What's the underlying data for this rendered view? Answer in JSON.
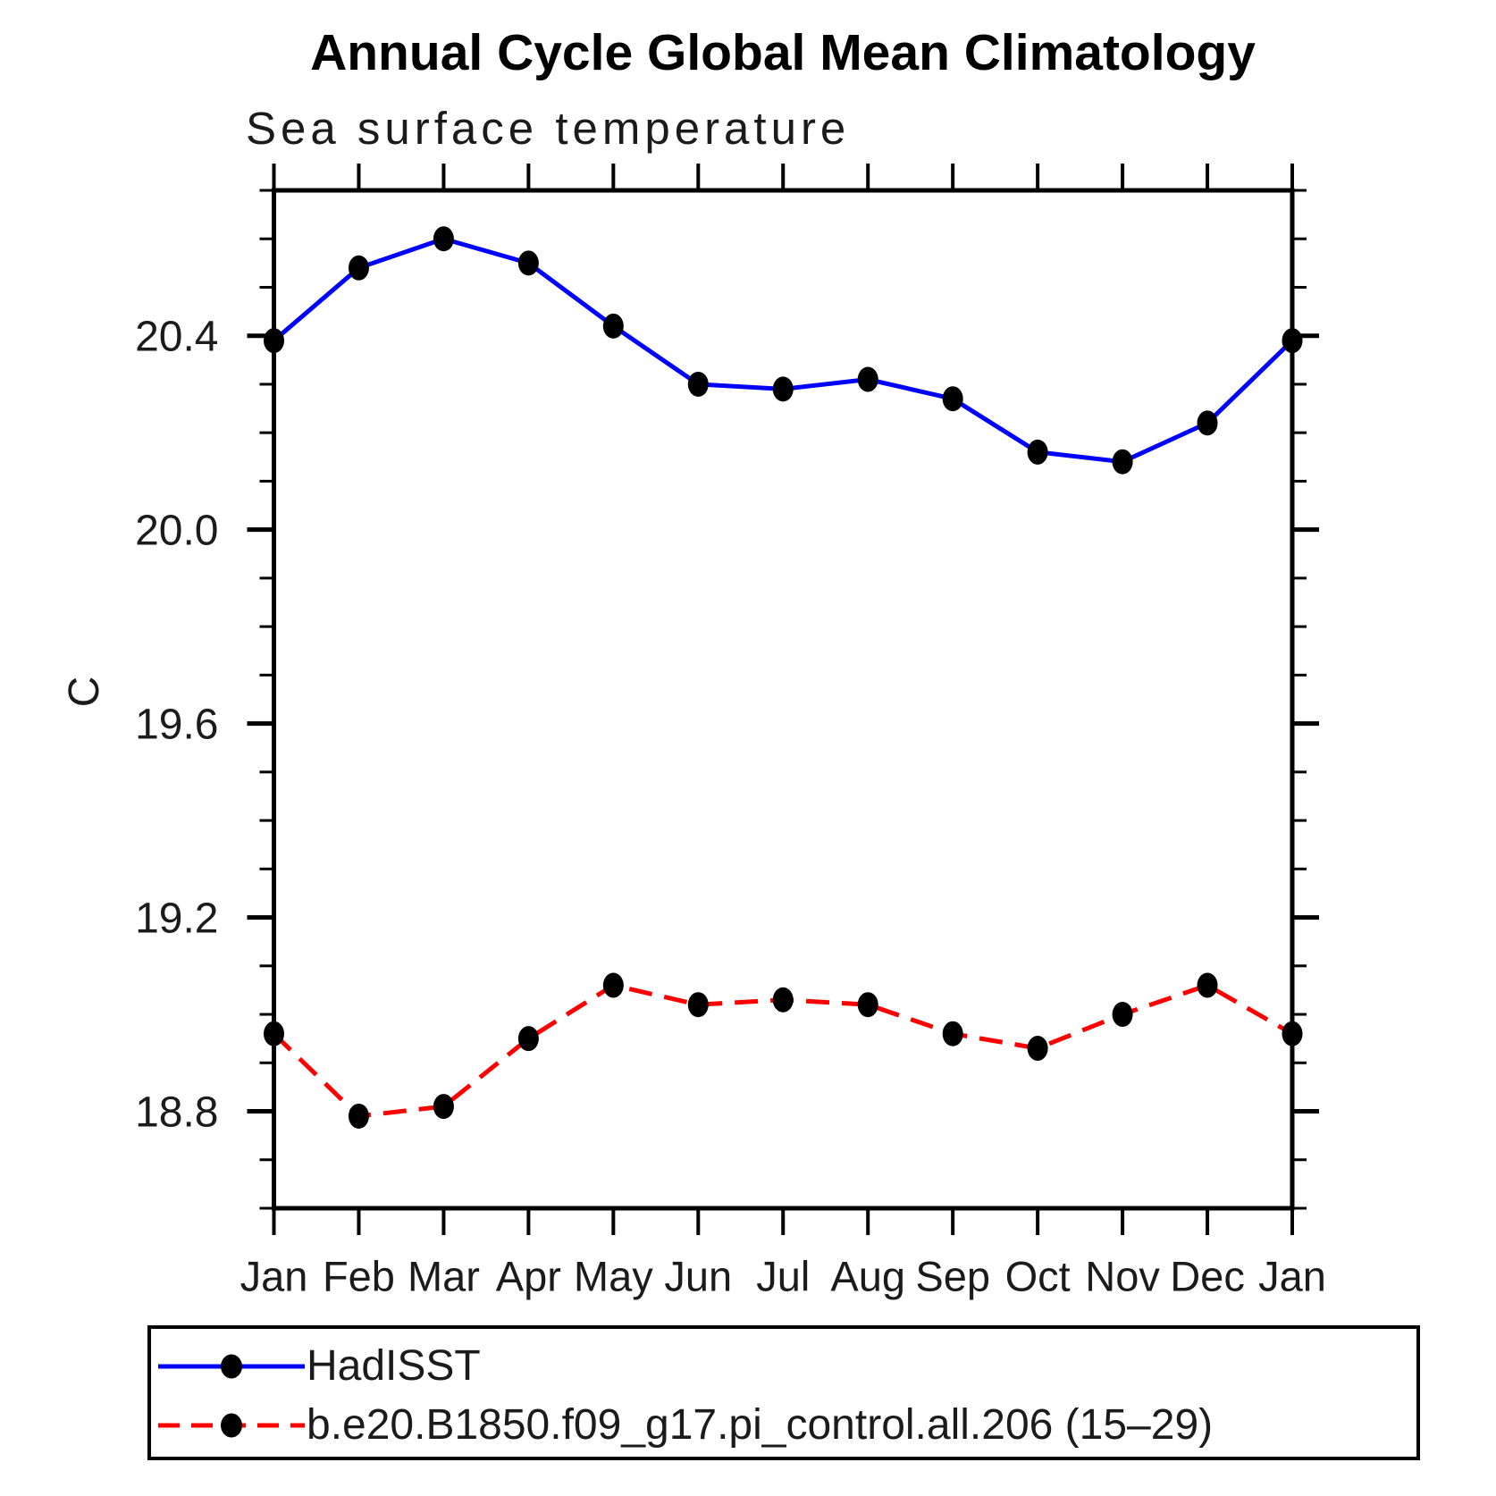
{
  "chart_data": {
    "type": "line",
    "title": "Annual Cycle Global Mean Climatology",
    "subtitle": "Sea surface temperature",
    "ylabel": "C",
    "xlabel": "",
    "categories": [
      "Jan",
      "Feb",
      "Mar",
      "Apr",
      "May",
      "Jun",
      "Jul",
      "Aug",
      "Sep",
      "Oct",
      "Nov",
      "Dec",
      "Jan"
    ],
    "ylim": [
      18.6,
      20.7
    ],
    "y_major_ticks": [
      18.8,
      19.2,
      19.6,
      20.0,
      20.4
    ],
    "y_minor_step": 0.1,
    "grid": false,
    "legend_position": "bottom",
    "axis_color": "#000000",
    "marker_color": "#000000",
    "series": [
      {
        "name": "HadISST",
        "color": "#0000ff",
        "style": "solid",
        "marker": "circle",
        "values": [
          20.39,
          20.54,
          20.6,
          20.55,
          20.42,
          20.3,
          20.29,
          20.31,
          20.27,
          20.16,
          20.14,
          20.22,
          20.39
        ]
      },
      {
        "name": "b.e20.B1850.f09_g17.pi_control.all.206 (15–29)",
        "color": "#ff0000",
        "style": "dashed",
        "marker": "circle",
        "values": [
          18.96,
          18.79,
          18.81,
          18.95,
          19.06,
          19.02,
          19.03,
          19.02,
          18.96,
          18.93,
          19.0,
          19.06,
          18.96
        ]
      }
    ]
  }
}
